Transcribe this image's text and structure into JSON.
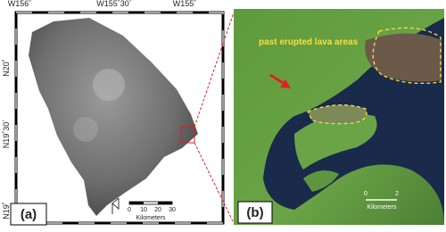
{
  "panel_a": {
    "label": "(a)",
    "longitudes": [
      "W156˚",
      "W155˚30´",
      "W155˚"
    ],
    "latitudes": [
      "N20˚",
      "N19˚30´",
      "N19˚"
    ],
    "scale": {
      "ticks": [
        "0",
        "10",
        "20",
        "30"
      ],
      "unit": "Kilometers"
    }
  },
  "panel_b": {
    "label": "(b)",
    "annotation": "past erupted lava areas",
    "scale": {
      "ticks": [
        "0",
        "2"
      ],
      "unit": "Kilometers"
    }
  }
}
